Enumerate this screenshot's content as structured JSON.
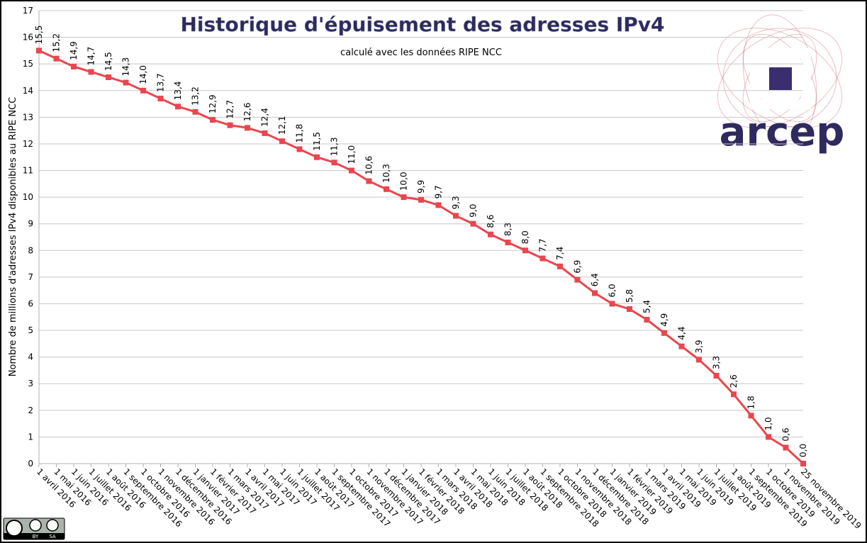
{
  "chart_data": {
    "type": "line",
    "title": "Historique d'épuisement des adresses IPv4",
    "subtitle": "calculé avec les données RIPE NCC",
    "y_label": "Nombre de millions d'adresses IPv4 disponibles au RIPE NCC",
    "categories": [
      "1 avril 2016",
      "1 mai 2016",
      "1 juin 2016",
      "1 juillet 2016",
      "1 août 2016",
      "1 septembre 2016",
      "1 octobre 2016",
      "1 novembre 2016",
      "1 décembre 2016",
      "1 janvier 2017",
      "1 février 2017",
      "1 mars 2017",
      "1 avril 2017",
      "1 mai 2017",
      "1 juin 2017",
      "1 juillet 2017",
      "1 août 2017",
      "1 septembre 2017",
      "1 octobre 2017",
      "1 novembre 2017",
      "1 décembre 2017",
      "1 janvier 2018",
      "1 février 2018",
      "1 mars 2018",
      "1 avril 2018",
      "1 mai 2018",
      "1 juin 2018",
      "1 juillet 2018",
      "1 août 2018",
      "1 septembre 2018",
      "1 octobre 2018",
      "1 novembre 2018",
      "1 décembre 2018",
      "1 janvier 2019",
      "1 février 2019",
      "1 mars 2019",
      "1 avril 2019",
      "1 mai 2019",
      "1 juin 2019",
      "1 juillet 2019",
      "1 août 2019",
      "1 septembre 2019",
      "1 octobre 2019",
      "1 novembre 2019",
      "25 novembre 2019"
    ],
    "values": [
      15.5,
      15.2,
      14.9,
      14.7,
      14.5,
      14.3,
      14.0,
      13.7,
      13.4,
      13.2,
      12.9,
      12.7,
      12.6,
      12.4,
      12.1,
      11.8,
      11.5,
      11.3,
      11.0,
      10.6,
      10.3,
      10.0,
      9.9,
      9.7,
      9.3,
      9.0,
      8.6,
      8.3,
      8.0,
      7.7,
      7.4,
      6.9,
      6.4,
      6.0,
      5.8,
      5.4,
      4.9,
      4.4,
      3.9,
      3.3,
      2.6,
      1.8,
      1.0,
      0.6,
      0.0
    ],
    "value_labels": [
      "15,5",
      "15,2",
      "14,9",
      "14,7",
      "14,5",
      "14,3",
      "14,0",
      "13,7",
      "13,4",
      "13,2",
      "12,9",
      "12,7",
      "12,6",
      "12,4",
      "12,1",
      "11,8",
      "11,5",
      "11,3",
      "11,0",
      "10,6",
      "10,3",
      "10,0",
      "9,9",
      "9,7",
      "9,3",
      "9,0",
      "8,6",
      "8,3",
      "8,0",
      "7,7",
      "7,4",
      "6,9",
      "6,4",
      "6,0",
      "5,8",
      "5,4",
      "4,9",
      "4,4",
      "3,9",
      "3,3",
      "2,6",
      "1,8",
      "1,0",
      "0,6",
      "0,0"
    ],
    "color": "#e8474f",
    "ylim": [
      0,
      17
    ],
    "yticks": [
      0,
      1,
      2,
      3,
      4,
      5,
      6,
      7,
      8,
      9,
      10,
      11,
      12,
      13,
      14,
      15,
      16,
      17
    ],
    "grid": true
  },
  "logo_text": "arcep",
  "license_badge": [
    "BY",
    "SA"
  ]
}
